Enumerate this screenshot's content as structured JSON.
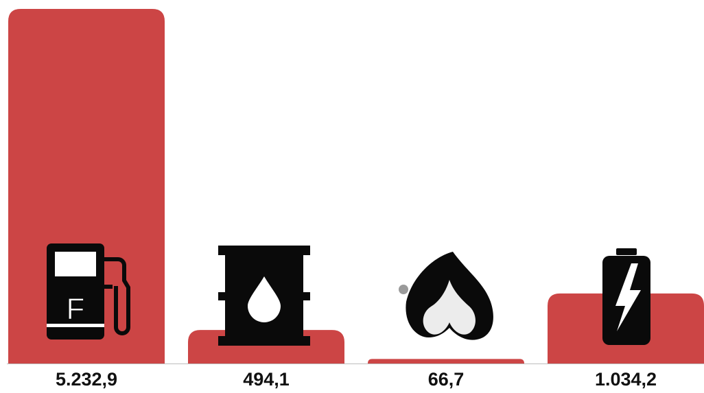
{
  "colors": {
    "bar": "#cc4545",
    "icon": "#0a0a0a",
    "baseline": "#bdbdbd",
    "accent_dot": "#9a9a9a"
  },
  "chart_data": {
    "type": "bar",
    "categories": [
      "fuel",
      "oil",
      "gas",
      "electricity"
    ],
    "values": [
      5232.9,
      494.1,
      66.7,
      1034.2
    ],
    "value_labels": [
      "5.232,9",
      "494,1",
      "66,7",
      "1.034,2"
    ],
    "icons": [
      "fuel-pump-icon",
      "oil-barrel-icon",
      "gas-flame-icon",
      "battery-icon"
    ],
    "fuel_pump_letter": "F",
    "ylim": [
      0,
      5232.9
    ],
    "grid": false,
    "legend": "none"
  }
}
